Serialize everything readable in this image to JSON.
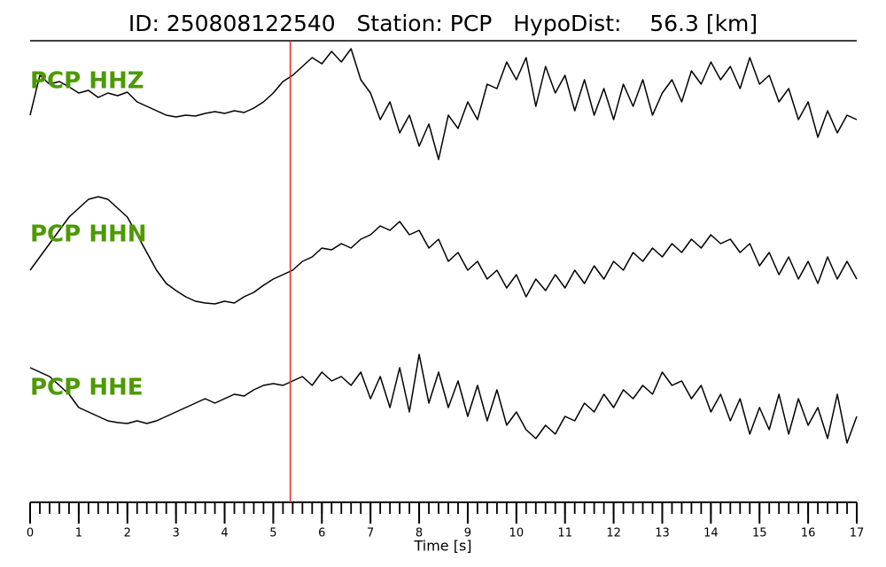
{
  "chart_data": {
    "type": "line",
    "title": "ID: 250808122540   Station: PCP   HypoDist:    56.3 [km]",
    "xlabel": "Time [s]",
    "xlim": [
      0,
      17
    ],
    "xticks": [
      0,
      1,
      2,
      3,
      4,
      5,
      6,
      7,
      8,
      9,
      10,
      11,
      12,
      13,
      14,
      15,
      16,
      17
    ],
    "xticks_minor": [
      0,
      0.2,
      0.4,
      0.6,
      0.8,
      1,
      1.2,
      1.4,
      1.6,
      1.8,
      2,
      2.2,
      2.4,
      2.6,
      2.8,
      3,
      3.2,
      3.4,
      3.6,
      3.8,
      4,
      4.2,
      4.4,
      4.6,
      4.8,
      5,
      5.2,
      5.4,
      5.6,
      5.8,
      6,
      6.2,
      6.4,
      6.6,
      6.8,
      7,
      7.2,
      7.4,
      7.6,
      7.8,
      8,
      8.2,
      8.4,
      8.6,
      8.8,
      9,
      9.2,
      9.4,
      9.6,
      9.8,
      10,
      10.2,
      10.4,
      10.6,
      10.8,
      11,
      11.2,
      11.4,
      11.6,
      11.8,
      12,
      12.2,
      12.4,
      12.6,
      12.8,
      13,
      13.2,
      13.4,
      13.6,
      13.8,
      14,
      14.2,
      14.4,
      14.6,
      14.8,
      15,
      15.2,
      15.4,
      15.6,
      15.8,
      16,
      16.2,
      16.4,
      16.6,
      16.8,
      17
    ],
    "pick_time": 5.35,
    "pick_color": "#e8262a",
    "label_color": "#4c9a00",
    "x": [
      0,
      0.2,
      0.4,
      0.6,
      0.8,
      1,
      1.2,
      1.4,
      1.6,
      1.8,
      2,
      2.2,
      2.4,
      2.6,
      2.8,
      3,
      3.2,
      3.4,
      3.6,
      3.8,
      4,
      4.2,
      4.4,
      4.6,
      4.8,
      5,
      5.2,
      5.4,
      5.6,
      5.8,
      6,
      6.2,
      6.4,
      6.6,
      6.8,
      7,
      7.2,
      7.4,
      7.6,
      7.8,
      8,
      8.2,
      8.4,
      8.6,
      8.8,
      9,
      9.2,
      9.4,
      9.6,
      9.8,
      10,
      10.2,
      10.4,
      10.6,
      10.8,
      11,
      11.2,
      11.4,
      11.6,
      11.8,
      12,
      12.2,
      12.4,
      12.6,
      12.8,
      13,
      13.2,
      13.4,
      13.6,
      13.8,
      14,
      14.2,
      14.4,
      14.6,
      14.8,
      15,
      15.2,
      15.4,
      15.6,
      15.8,
      16,
      16.2,
      16.4,
      16.6,
      16.8,
      17
    ],
    "series": [
      {
        "name": "PCP HHZ",
        "color": "#000000",
        "values": [
          -20,
          25,
          15,
          18,
          12,
          5,
          8,
          0,
          5,
          2,
          6,
          -5,
          -10,
          -15,
          -20,
          -22,
          -20,
          -21,
          -18,
          -16,
          -18,
          -15,
          -17,
          -12,
          -5,
          5,
          18,
          25,
          35,
          45,
          38,
          52,
          40,
          55,
          20,
          5,
          -25,
          -5,
          -40,
          -20,
          -55,
          -30,
          -70,
          -20,
          -35,
          -5,
          -25,
          15,
          10,
          40,
          20,
          45,
          -10,
          35,
          5,
          25,
          -15,
          20,
          -20,
          10,
          -25,
          15,
          -10,
          20,
          -20,
          5,
          20,
          -5,
          30,
          15,
          40,
          20,
          35,
          10,
          45,
          15,
          25,
          -5,
          10,
          -25,
          -5,
          -45,
          -15,
          -40,
          -20,
          -25
        ]
      },
      {
        "name": "PCP HHN",
        "color": "#000000",
        "values": [
          -25,
          -10,
          5,
          20,
          35,
          45,
          55,
          58,
          55,
          45,
          35,
          15,
          -5,
          -25,
          -40,
          -48,
          -55,
          -60,
          -62,
          -63,
          -60,
          -62,
          -55,
          -50,
          -42,
          -35,
          -30,
          -25,
          -15,
          -10,
          0,
          -2,
          5,
          0,
          10,
          15,
          25,
          20,
          30,
          15,
          20,
          0,
          10,
          -15,
          -5,
          -25,
          -15,
          -35,
          -25,
          -45,
          -30,
          -55,
          -35,
          -48,
          -30,
          -45,
          -25,
          -40,
          -20,
          -35,
          -15,
          -25,
          -5,
          -15,
          0,
          -10,
          5,
          -5,
          10,
          0,
          15,
          5,
          10,
          -5,
          5,
          -20,
          -5,
          -30,
          -10,
          -35,
          -15,
          -40,
          -10,
          -35,
          -15,
          -35
        ]
      },
      {
        "name": "PCP HHE",
        "color": "#000000",
        "values": [
          35,
          30,
          25,
          15,
          5,
          -10,
          -15,
          -20,
          -25,
          -27,
          -28,
          -25,
          -28,
          -25,
          -20,
          -15,
          -10,
          -5,
          0,
          -5,
          0,
          5,
          3,
          10,
          15,
          17,
          15,
          20,
          25,
          15,
          30,
          20,
          25,
          15,
          30,
          0,
          25,
          -10,
          35,
          -15,
          50,
          -5,
          30,
          -10,
          20,
          -20,
          15,
          -25,
          10,
          -30,
          -15,
          -35,
          -45,
          -30,
          -40,
          -20,
          -25,
          -5,
          -15,
          5,
          -10,
          10,
          0,
          15,
          5,
          30,
          15,
          20,
          0,
          15,
          -15,
          5,
          -25,
          0,
          -40,
          -10,
          -35,
          5,
          -40,
          0,
          -30,
          -10,
          -45,
          5,
          -50,
          -20
        ]
      }
    ]
  }
}
